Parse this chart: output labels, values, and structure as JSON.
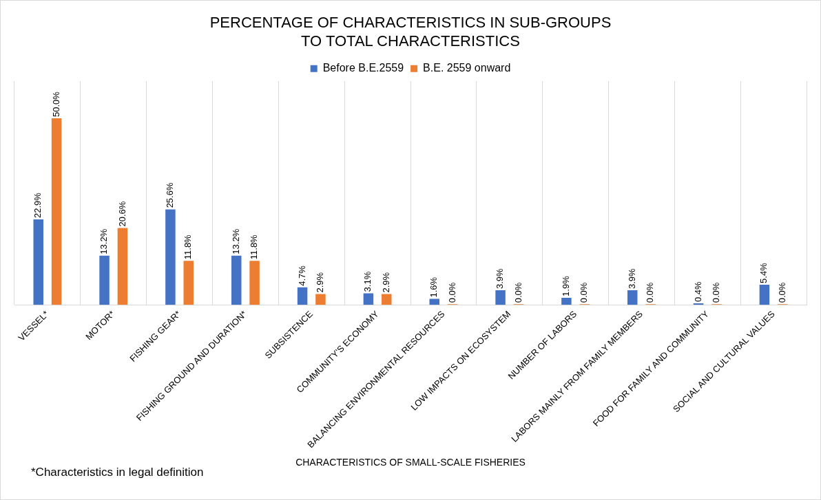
{
  "chart_data": {
    "type": "bar",
    "title": "PERCENTAGE OF CHARACTERISTICS IN SUB-GROUPS\nTO TOTAL CHARACTERISTICS",
    "xlabel": "CHARACTERISTICS OF SMALL-SCALE FISHERIES",
    "annotations": [
      "*Characteristics in legal definition"
    ],
    "categories": [
      "VESSEL*",
      "MOTOR*",
      "FISHING GEAR*",
      "FISHING GROUND AND DURATION*",
      "SUBSISTENCE",
      "COMMUNITY'S ECONOMY",
      "BALANCING ENVIRONMENTAL RESOURCES",
      "LOW IMPACTS ON ECOSYSTEM",
      "NUMBER OF LABORS",
      "LABORS MAINLY FROM FAMILY MEMBERS",
      "FOOD FOR FAMILY AND COMMUNITY",
      "SOCIAL AND CULTURAL VALUES"
    ],
    "series": [
      {
        "name": "Before B.E.2559",
        "color": "#4472c4",
        "values": [
          22.9,
          13.2,
          25.6,
          13.2,
          4.7,
          3.1,
          1.6,
          3.9,
          1.9,
          3.9,
          0.4,
          5.4
        ],
        "value_labels": [
          "22.9%",
          "13.2%",
          "25.6%",
          "13.2%",
          "4.7%",
          "3.1%",
          "1.6%",
          "3.9%",
          "1.9%",
          "3.9%",
          "0.4%",
          "5.4%"
        ]
      },
      {
        "name": "B.E. 2559 onward",
        "color": "#ed7d31",
        "values": [
          50.0,
          20.6,
          11.8,
          11.8,
          2.9,
          2.9,
          0.0,
          0.0,
          0.0,
          0.0,
          0.0,
          0.0
        ],
        "value_labels": [
          "50.0%",
          "20.6%",
          "11.8%",
          "11.8%",
          "2.9%",
          "2.9%",
          "0.0%",
          "0.0%",
          "0.0%",
          "0.0%",
          "0.0%",
          "0.0%"
        ]
      }
    ],
    "grid": "x",
    "legend": "top",
    "tick_labels": "x"
  }
}
